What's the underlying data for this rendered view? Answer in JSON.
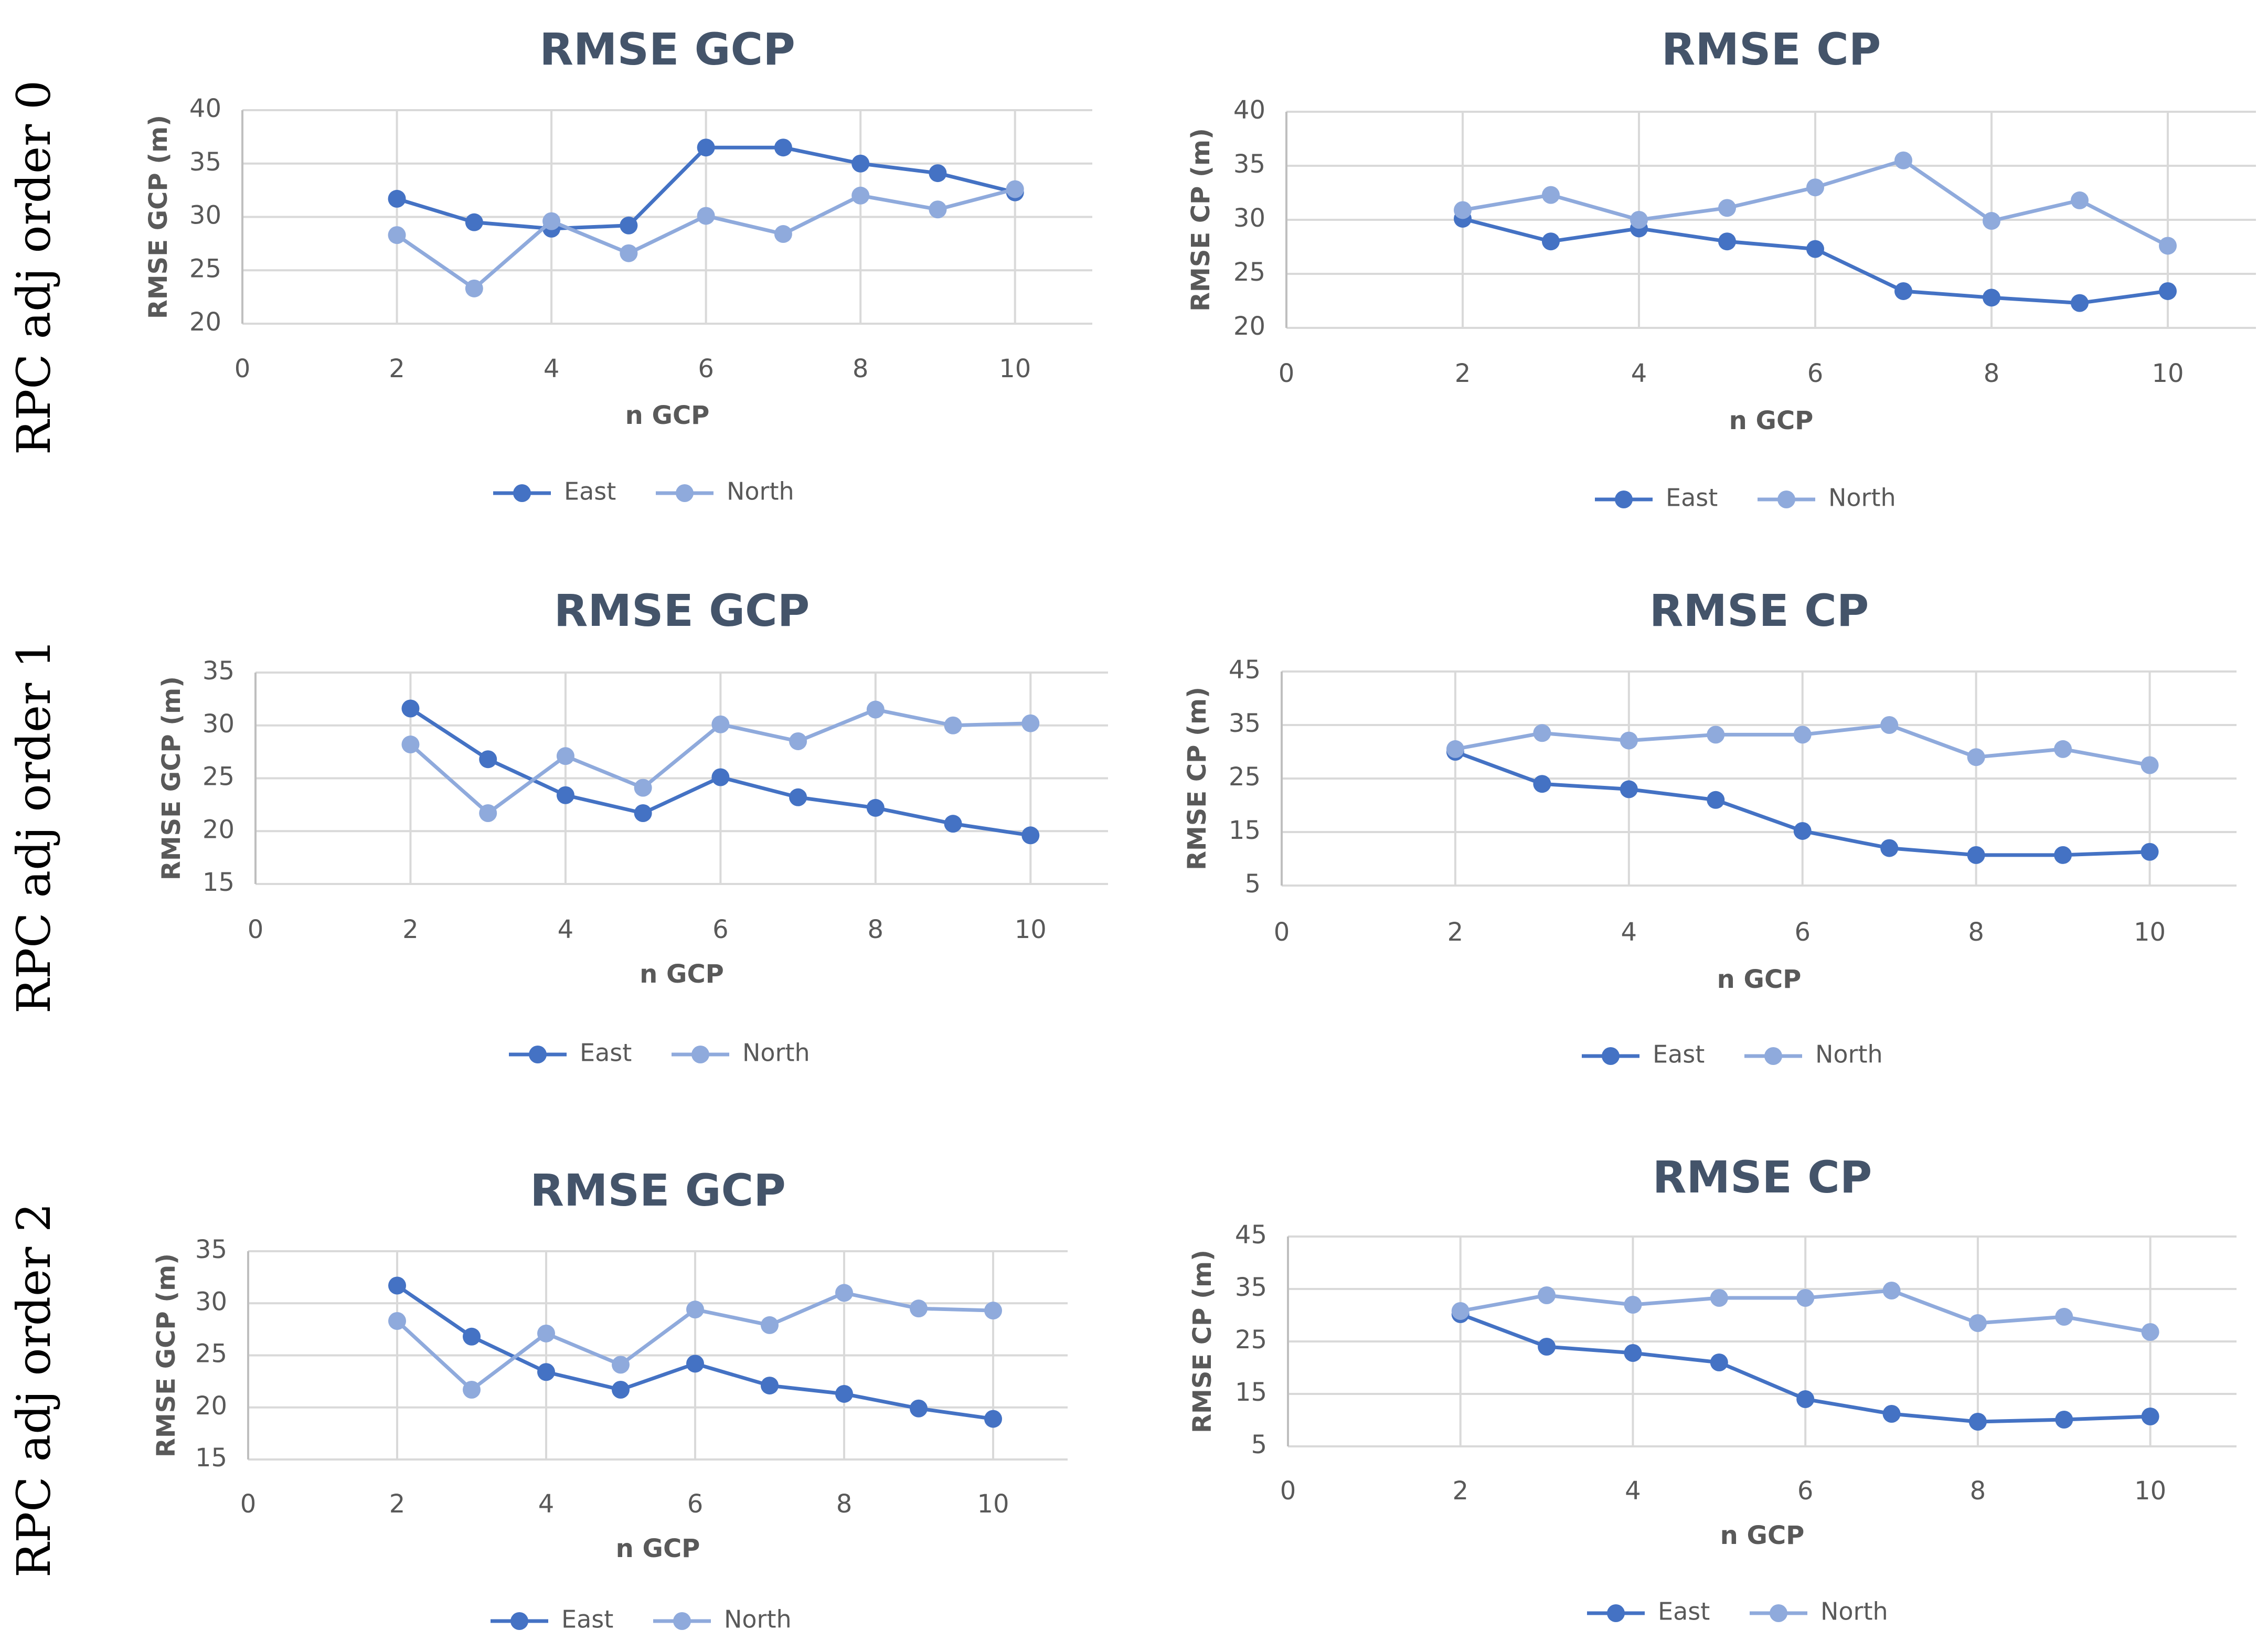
{
  "row_labels": [
    "RPC adj order 0",
    "RPC adj order 1",
    "RPC adj order 2"
  ],
  "colors": {
    "east": "#4472c4",
    "north": "#8faadc"
  },
  "chart_data": [
    {
      "type": "line",
      "title": "RMSE GCP",
      "xlabel": "n GCP",
      "ylabel": "RMSE GCP (m)",
      "xlim": [
        0,
        11
      ],
      "xticks": [
        0,
        2,
        4,
        6,
        8,
        10
      ],
      "ylim": [
        20,
        40
      ],
      "yticks": [
        20,
        25,
        30,
        35,
        40
      ],
      "x": [
        2,
        3,
        4,
        5,
        6,
        7,
        8,
        9,
        10
      ],
      "series": [
        {
          "name": "East",
          "values": [
            31.7,
            29.5,
            28.9,
            29.2,
            36.5,
            36.5,
            35.0,
            34.1,
            32.3
          ]
        },
        {
          "name": "North",
          "values": [
            28.3,
            23.3,
            29.6,
            26.6,
            30.1,
            28.4,
            32.0,
            30.7,
            32.6
          ]
        }
      ]
    },
    {
      "type": "line",
      "title": "RMSE CP",
      "xlabel": "n GCP",
      "ylabel": "RMSE CP (m)",
      "xlim": [
        0,
        11
      ],
      "xticks": [
        0,
        2,
        4,
        6,
        8,
        10
      ],
      "ylim": [
        20,
        40
      ],
      "yticks": [
        20,
        25,
        30,
        35,
        40
      ],
      "x": [
        2,
        3,
        4,
        5,
        6,
        7,
        8,
        9,
        10
      ],
      "series": [
        {
          "name": "East",
          "values": [
            30.1,
            28.0,
            29.2,
            28.0,
            27.3,
            23.4,
            22.8,
            22.3,
            23.4
          ]
        },
        {
          "name": "North",
          "values": [
            30.9,
            32.3,
            30.0,
            31.1,
            33.0,
            35.5,
            29.9,
            31.8,
            27.6
          ]
        }
      ]
    },
    {
      "type": "line",
      "title": "RMSE GCP",
      "xlabel": "n GCP",
      "ylabel": "RMSE GCP (m)",
      "xlim": [
        0,
        11
      ],
      "xticks": [
        0,
        2,
        4,
        6,
        8,
        10
      ],
      "ylim": [
        15,
        35
      ],
      "yticks": [
        15,
        20,
        25,
        30,
        35
      ],
      "x": [
        2,
        3,
        4,
        5,
        6,
        7,
        8,
        9,
        10
      ],
      "series": [
        {
          "name": "East",
          "values": [
            31.6,
            26.8,
            23.4,
            21.7,
            25.1,
            23.2,
            22.2,
            20.7,
            19.6
          ]
        },
        {
          "name": "North",
          "values": [
            28.2,
            21.7,
            27.1,
            24.1,
            30.1,
            28.5,
            31.5,
            30.0,
            30.2
          ]
        }
      ]
    },
    {
      "type": "line",
      "title": "RMSE CP",
      "xlabel": "n GCP",
      "ylabel": "RMSE CP (m)",
      "xlim": [
        0,
        11
      ],
      "xticks": [
        0,
        2,
        4,
        6,
        8,
        10
      ],
      "ylim": [
        5,
        45
      ],
      "yticks": [
        5,
        15,
        25,
        35,
        45
      ],
      "x": [
        2,
        3,
        4,
        5,
        6,
        7,
        8,
        9,
        10
      ],
      "series": [
        {
          "name": "East",
          "values": [
            30.0,
            24.0,
            23.0,
            21.0,
            15.2,
            12.0,
            10.7,
            10.7,
            11.3
          ]
        },
        {
          "name": "North",
          "values": [
            30.5,
            33.5,
            32.1,
            33.2,
            33.2,
            35.0,
            29.0,
            30.5,
            27.5
          ]
        }
      ]
    },
    {
      "type": "line",
      "title": "RMSE GCP",
      "xlabel": "n GCP",
      "ylabel": "RMSE GCP (m)",
      "xlim": [
        0,
        11
      ],
      "xticks": [
        0,
        2,
        4,
        6,
        8,
        10
      ],
      "ylim": [
        15,
        35
      ],
      "yticks": [
        15,
        20,
        25,
        30,
        35
      ],
      "x": [
        2,
        3,
        4,
        5,
        6,
        7,
        8,
        9,
        10
      ],
      "series": [
        {
          "name": "East",
          "values": [
            31.7,
            26.8,
            23.4,
            21.7,
            24.2,
            22.1,
            21.3,
            19.9,
            18.9
          ]
        },
        {
          "name": "North",
          "values": [
            28.3,
            21.7,
            27.1,
            24.1,
            29.4,
            27.9,
            31.0,
            29.5,
            29.3
          ]
        }
      ]
    },
    {
      "type": "line",
      "title": "RMSE CP",
      "xlabel": "n GCP",
      "ylabel": "RMSE CP (m)",
      "xlim": [
        0,
        11
      ],
      "xticks": [
        0,
        2,
        4,
        6,
        8,
        10
      ],
      "ylim": [
        5,
        45
      ],
      "yticks": [
        5,
        15,
        25,
        35,
        45
      ],
      "x": [
        2,
        3,
        4,
        5,
        6,
        7,
        8,
        9,
        10
      ],
      "series": [
        {
          "name": "East",
          "values": [
            30.2,
            24.0,
            22.8,
            21.0,
            14.0,
            11.2,
            9.7,
            10.1,
            10.7
          ]
        },
        {
          "name": "North",
          "values": [
            30.8,
            33.8,
            32.0,
            33.3,
            33.3,
            34.7,
            28.5,
            29.7,
            26.8
          ]
        }
      ]
    }
  ]
}
